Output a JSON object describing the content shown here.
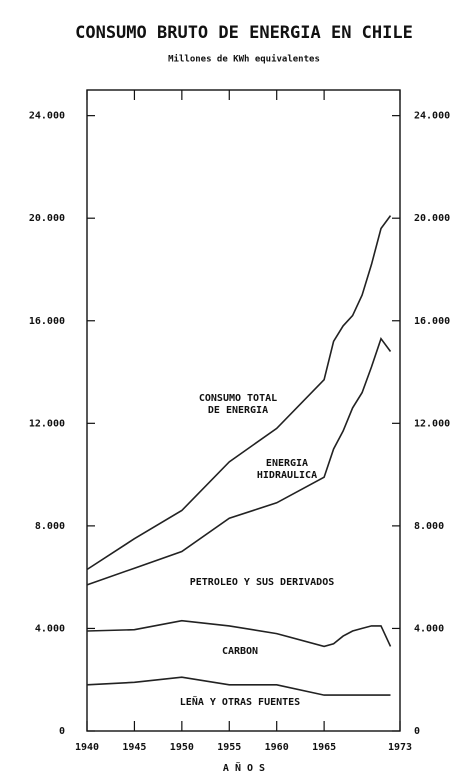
{
  "chart_data": {
    "type": "stacked_line",
    "title": "CONSUMO BRUTO DE ENERGIA EN CHILE",
    "subtitle": "Millones de KWh equivalentes",
    "x_label": "A Ñ O S",
    "x": [
      1940,
      1945,
      1950,
      1955,
      1960,
      1965,
      1966,
      1967,
      1968,
      1969,
      1970,
      1971,
      1972
    ],
    "series": [
      {
        "name": "LEÑA Y OTRAS FUENTES",
        "color": "#222222",
        "values": [
          1800,
          1900,
          2100,
          1800,
          1800,
          1400,
          1400,
          1400,
          1400,
          1400,
          1400,
          1400,
          1400
        ]
      },
      {
        "name": "CARBON",
        "color": "#222222",
        "values": [
          2100,
          2050,
          2200,
          2300,
          2000,
          1900,
          2000,
          2300,
          2500,
          2600,
          2700,
          2700,
          1900
        ]
      },
      {
        "name": "PETROLEO Y SUS DERIVADOS",
        "color": "#222222",
        "values": [
          1800,
          2400,
          2700,
          4200,
          5100,
          6600,
          7600,
          8000,
          8700,
          9200,
          10100,
          11200,
          11500
        ]
      },
      {
        "name": "ENERGIA\nHIDRAULICA",
        "color": "#222222",
        "values": [
          600,
          1150,
          1600,
          2200,
          2900,
          3800,
          4200,
          4100,
          3600,
          3800,
          4000,
          4300,
          5300
        ]
      }
    ],
    "annotations": [
      "CONSUMO TOTAL\nDE ENERGIA"
    ],
    "xlim": [
      1940,
      1973
    ],
    "xticks": [
      1940,
      1945,
      1950,
      1955,
      1960,
      1965,
      1973
    ],
    "ylim": [
      0,
      25000
    ],
    "yticks": [
      0,
      {
        "value": 4000,
        "label": "4.000"
      },
      {
        "value": 8000,
        "label": "8.000"
      },
      {
        "value": 12000,
        "label": "12.000"
      },
      {
        "value": 16000,
        "label": "16.000"
      },
      {
        "value": 20000,
        "label": "20.000"
      },
      {
        "value": 24000,
        "label": "24.000"
      }
    ],
    "y2lim": [
      0,
      25000
    ],
    "y2ticks": [
      0,
      {
        "value": 4000,
        "label": "4.000"
      },
      {
        "value": 8000,
        "label": "8.000"
      },
      {
        "value": 12000,
        "label": "12.000"
      },
      {
        "value": 16000,
        "label": "16.000"
      },
      {
        "value": 20000,
        "label": "20.000"
      },
      {
        "value": 24000,
        "label": "24.000"
      }
    ]
  }
}
